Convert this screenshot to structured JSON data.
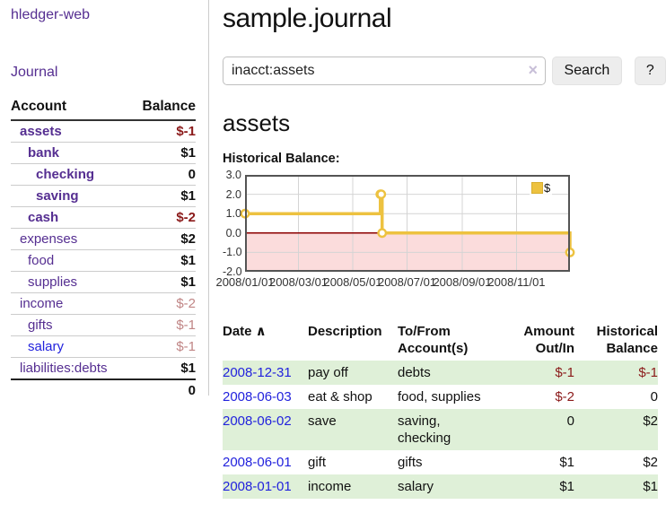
{
  "app": {
    "title": "hledger-web",
    "nav_journal": "Journal"
  },
  "sidebar": {
    "header": {
      "account": "Account",
      "balance": "Balance"
    },
    "accounts": [
      {
        "name": "assets",
        "depth": 1,
        "bold": true,
        "blue": false,
        "balance": "$-1",
        "balance_style": "neg"
      },
      {
        "name": "bank",
        "depth": 2,
        "bold": true,
        "blue": false,
        "balance": "$1",
        "balance_style": "pos"
      },
      {
        "name": "checking",
        "depth": 3,
        "bold": true,
        "blue": false,
        "balance": "0",
        "balance_style": "pos"
      },
      {
        "name": "saving",
        "depth": 3,
        "bold": true,
        "blue": false,
        "balance": "$1",
        "balance_style": "pos"
      },
      {
        "name": "cash",
        "depth": 2,
        "bold": true,
        "blue": false,
        "balance": "$-2",
        "balance_style": "neg"
      },
      {
        "name": "expenses",
        "depth": 1,
        "bold": false,
        "blue": false,
        "balance": "$2",
        "balance_style": "pos"
      },
      {
        "name": "food",
        "depth": 2,
        "bold": false,
        "blue": false,
        "balance": "$1",
        "balance_style": "pos"
      },
      {
        "name": "supplies",
        "depth": 2,
        "bold": false,
        "blue": false,
        "balance": "$1",
        "balance_style": "pos"
      },
      {
        "name": "income",
        "depth": 1,
        "bold": false,
        "blue": false,
        "balance": "$-2",
        "balance_style": "rose"
      },
      {
        "name": "gifts",
        "depth": 2,
        "bold": false,
        "blue": false,
        "balance": "$-1",
        "balance_style": "rose"
      },
      {
        "name": "salary",
        "depth": 2,
        "bold": false,
        "blue": true,
        "balance": "$-1",
        "balance_style": "rose"
      },
      {
        "name": "liabilities:debts",
        "depth": 1,
        "bold": false,
        "blue": false,
        "balance": "$1",
        "balance_style": "pos"
      }
    ],
    "total": "0"
  },
  "header": {
    "title": "sample.journal"
  },
  "search": {
    "value": "inacct:assets",
    "clear_icon": "×",
    "button_label": "Search",
    "help_label": "?"
  },
  "report": {
    "heading": "assets",
    "chart_label": "Historical Balance:"
  },
  "chart_data": {
    "type": "line",
    "title": "Historical Balance",
    "step": true,
    "series": [
      {
        "name": "$",
        "color": "#edc240",
        "points": [
          {
            "date": "2008-01-01",
            "value": 1
          },
          {
            "date": "2008-06-01",
            "value": 2
          },
          {
            "date": "2008-06-02",
            "value": 2
          },
          {
            "date": "2008-06-03",
            "value": 0
          },
          {
            "date": "2008-12-31",
            "value": -1
          }
        ]
      }
    ],
    "x_range": [
      "2008-01-01",
      "2008-12-31"
    ],
    "y_range": [
      -2,
      3
    ],
    "x_ticks": [
      "2008/01/01",
      "2008/03/01",
      "2008/05/01",
      "2008/07/01",
      "2008/09/01",
      "2008/11/01"
    ],
    "y_ticks": [
      3.0,
      2.0,
      1.0,
      0.0,
      -1.0,
      -2.0
    ],
    "grid": true,
    "legend_position": "top-right",
    "legend_label": "$",
    "negative_region_fill": "#fbdcdc",
    "zero_line_color": "#8b0000"
  },
  "register": {
    "headers": [
      {
        "line1": "Date",
        "sort": "∧",
        "line2": "",
        "align": "left"
      },
      {
        "line1": "Description",
        "line2": "",
        "align": "left"
      },
      {
        "line1": "To/From",
        "line2": "Account(s)",
        "align": "left"
      },
      {
        "line1": "Amount",
        "line2": "Out/In",
        "align": "right"
      },
      {
        "line1": "Historical",
        "line2": "Balance",
        "align": "right"
      }
    ],
    "rows": [
      {
        "date": "2008-12-31",
        "description": "pay off",
        "accounts": "debts",
        "amount": "$-1",
        "balance": "$-1"
      },
      {
        "date": "2008-06-03",
        "description": "eat & shop",
        "accounts": "food, supplies",
        "amount": "$-2",
        "balance": "0"
      },
      {
        "date": "2008-06-02",
        "description": "save",
        "accounts": "saving, checking",
        "amount": "0",
        "balance": "$2"
      },
      {
        "date": "2008-06-01",
        "description": "gift",
        "accounts": "gifts",
        "amount": "$1",
        "balance": "$2"
      },
      {
        "date": "2008-01-01",
        "description": "income",
        "accounts": "salary",
        "amount": "$1",
        "balance": "$1"
      }
    ]
  }
}
